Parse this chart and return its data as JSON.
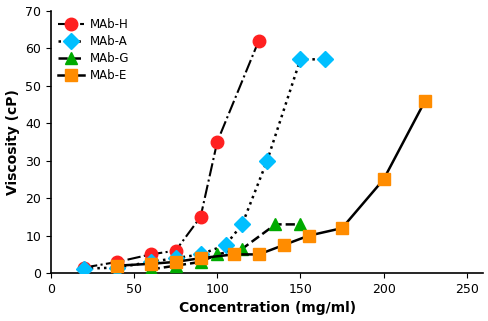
{
  "title": "",
  "xlabel": "Concentration (mg/ml)",
  "ylabel": "Viscosity (cP)",
  "xlim": [
    0,
    260
  ],
  "ylim": [
    0,
    70
  ],
  "xticks": [
    0,
    50,
    100,
    150,
    200,
    250
  ],
  "yticks": [
    0,
    10,
    20,
    30,
    40,
    50,
    60,
    70
  ],
  "MAb_H": {
    "x": [
      20,
      40,
      60,
      75,
      90,
      100,
      125
    ],
    "y": [
      1.5,
      3,
      5,
      6,
      15,
      35,
      62
    ],
    "line_color": "#000000",
    "marker_color": "#ff2020",
    "linestyle": "-.",
    "marker": "o",
    "markersize": 9,
    "linewidth": 1.5,
    "label": "MAb-H"
  },
  "MAb_A": {
    "x": [
      20,
      40,
      60,
      75,
      90,
      105,
      115,
      130,
      150,
      165
    ],
    "y": [
      1.2,
      1.5,
      3,
      4,
      5,
      7.5,
      13,
      30,
      57,
      57
    ],
    "line_color": "#000000",
    "marker_color": "#00bfff",
    "linestyle": ":",
    "marker": "D",
    "markersize": 8,
    "linewidth": 1.8,
    "label": "MAb-A"
  },
  "MAb_G": {
    "x": [
      60,
      75,
      90,
      100,
      115,
      135,
      150
    ],
    "y": [
      1,
      2,
      3,
      5,
      6.5,
      13,
      13
    ],
    "line_color": "#000000",
    "marker_color": "#00aa00",
    "linestyle": "--",
    "marker": "^",
    "markersize": 8,
    "linewidth": 1.8,
    "label": "MAb-G"
  },
  "MAb_E": {
    "x": [
      40,
      60,
      75,
      90,
      110,
      125,
      140,
      155,
      175,
      200,
      225
    ],
    "y": [
      2,
      2.5,
      3,
      4,
      5,
      5,
      7.5,
      10,
      12,
      25,
      46
    ],
    "line_color": "#000000",
    "marker_color": "#ff8c00",
    "linestyle": "-",
    "marker": "s",
    "markersize": 8,
    "linewidth": 1.8,
    "label": "MAb-E"
  },
  "legend_fontsize": 8.5,
  "axis_fontsize": 10,
  "tick_fontsize": 9,
  "axis_label_fontweight": "bold"
}
